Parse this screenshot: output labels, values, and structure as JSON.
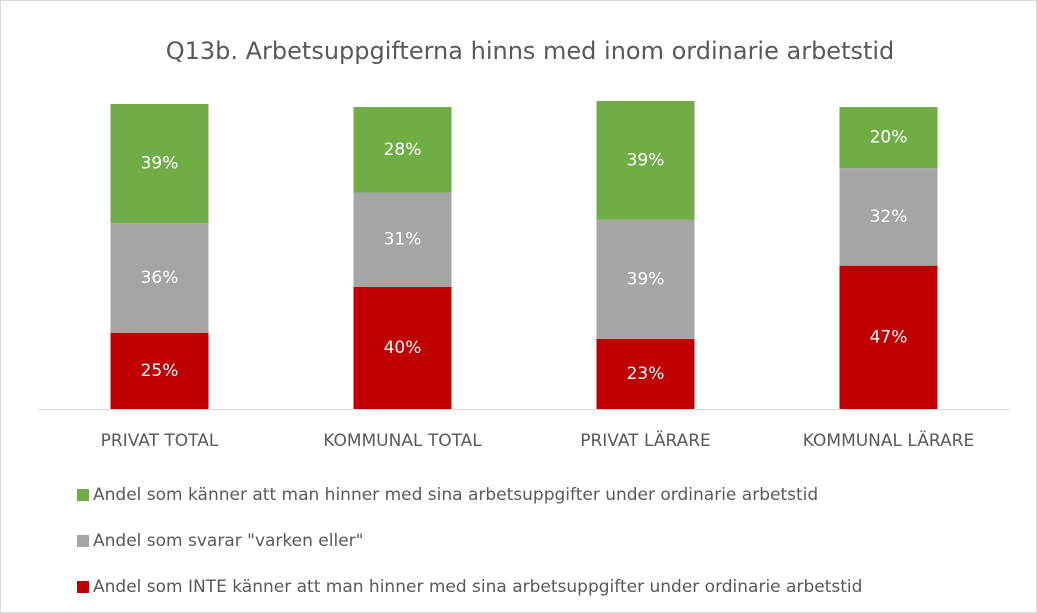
{
  "chart_data": {
    "type": "stacked-bar",
    "title": "Q13b. Arbetsuppgifterna hinns med inom ordinarie arbetstid",
    "categories": [
      "PRIVAT TOTAL",
      "KOMMUNAL TOTAL",
      "PRIVAT LÄRARE",
      "KOMMUNAL LÄRARE"
    ],
    "ylim": [
      0,
      100
    ],
    "series": [
      {
        "name": "Andel som INTE känner att man hinner med sina arbetsuppgifter under ordinarie arbetstid",
        "color": "#c00000",
        "values": [
          25,
          40,
          23,
          47
        ],
        "value_labels": [
          "25%",
          "40%",
          "23%",
          "47%"
        ]
      },
      {
        "name": "Andel som svarar \"varken eller\"",
        "color": "#a5a5a5",
        "values": [
          36,
          31,
          39,
          32
        ],
        "value_labels": [
          "36%",
          "31%",
          "39%",
          "32%"
        ]
      },
      {
        "name": "Andel som känner att man hinner med sina arbetsuppgifter under ordinarie arbetstid",
        "color": "#70ad47",
        "values": [
          39,
          28,
          39,
          20
        ],
        "value_labels": [
          "39%",
          "28%",
          "39%",
          "20%"
        ]
      }
    ]
  }
}
